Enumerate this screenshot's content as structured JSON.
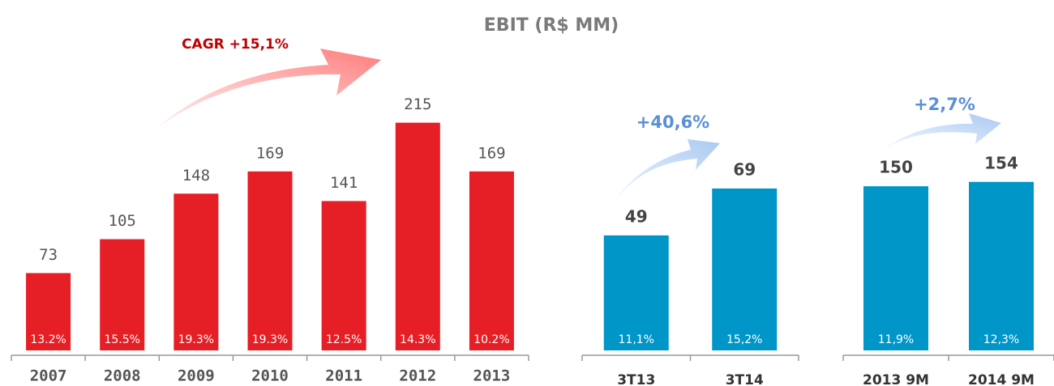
{
  "title": "EBIT (R$ MM)",
  "chart_data": [
    {
      "type": "bar",
      "annotation": "CAGR +15,1%",
      "categories": [
        "2007",
        "2008",
        "2009",
        "2010",
        "2011",
        "2012",
        "2013"
      ],
      "values": [
        73,
        105,
        148,
        169,
        141,
        215,
        169
      ],
      "margins": [
        13.2,
        15.5,
        19.3,
        19.3,
        12.5,
        14.3,
        10.2
      ],
      "margin_labels": [
        "13.2%",
        "15.5%",
        "19.3%",
        "19.3%",
        "12.5%",
        "14.3%",
        "10.2%"
      ],
      "color": "#e61e25",
      "ylim": [
        0,
        230
      ]
    },
    {
      "type": "bar",
      "annotation": "+40,6%",
      "categories": [
        "3T13",
        "3T14"
      ],
      "values": [
        49,
        69
      ],
      "margins": [
        11.1,
        15.2
      ],
      "margin_labels": [
        "11,1%",
        "15,2%"
      ],
      "color": "#0096c8",
      "ylim": [
        0,
        100
      ]
    },
    {
      "type": "bar",
      "annotation": "+2,7%",
      "categories": [
        "2013 9M",
        "2014 9M"
      ],
      "values": [
        150,
        154
      ],
      "margins": [
        11.9,
        12.3
      ],
      "margin_labels": [
        "11,9%",
        "12,3%"
      ],
      "color": "#0096c8",
      "ylim": [
        0,
        230
      ]
    }
  ]
}
